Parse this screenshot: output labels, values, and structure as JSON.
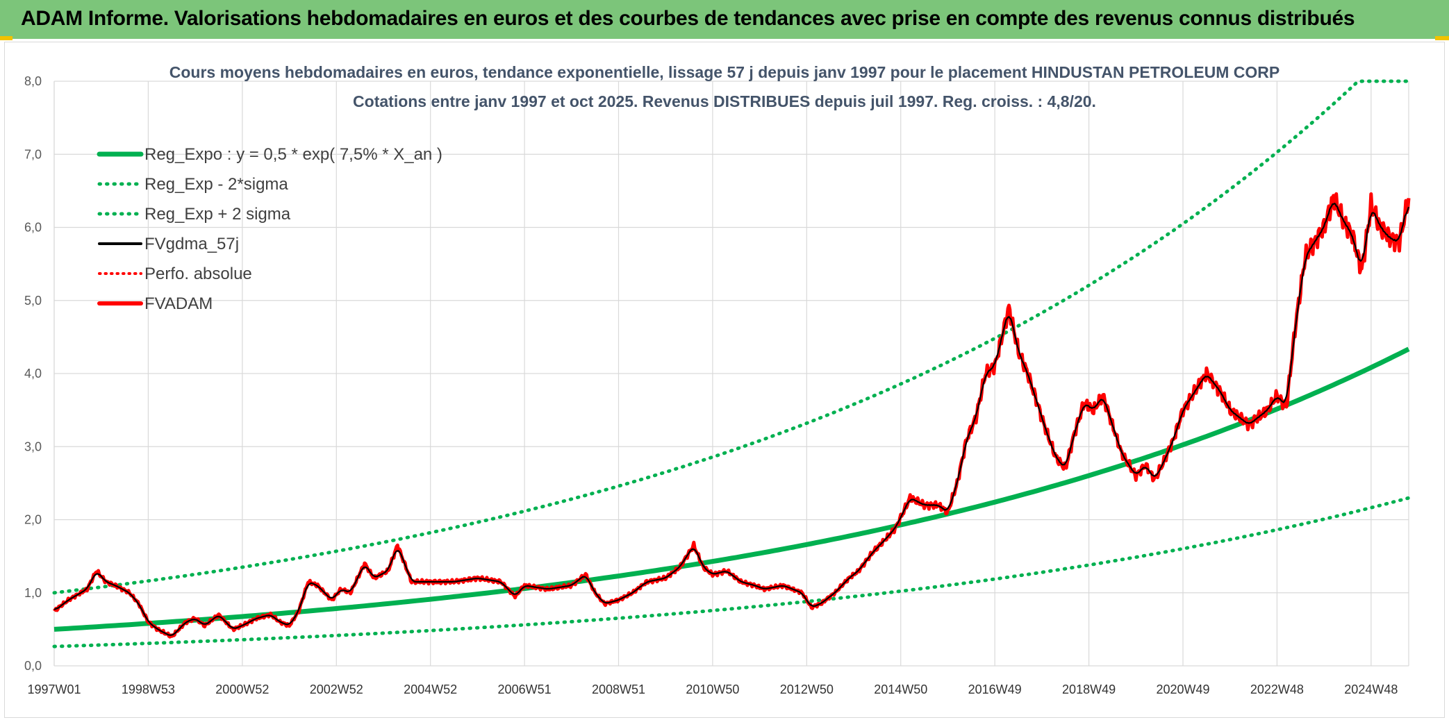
{
  "header": {
    "title": "ADAM Informe. Valorisations hebdomadaires en euros et des courbes de tendances avec prise en compte des revenus connus distribués"
  },
  "chart_data": {
    "type": "line",
    "title": "Cours moyens hebdomadaires en euros, tendance exponentielle, lissage 57 j depuis janv 1997 pour le placement HINDUSTAN PETROLEUM CORP",
    "subtitle": "Cotations entre janv 1997 et oct 2025. Revenus DISTRIBUES depuis juil 1997. Reg. croiss. : 4,8/20.",
    "ylim": [
      0,
      8
    ],
    "yticks": [
      "0,0",
      "1,0",
      "2,0",
      "3,0",
      "4,0",
      "5,0",
      "6,0",
      "7,0",
      "8,0"
    ],
    "x_range_years": [
      1997.0,
      2025.8
    ],
    "xticks": [
      {
        "label": "1997W01",
        "year": 1997.0
      },
      {
        "label": "1998W53",
        "year": 1999.0
      },
      {
        "label": "2000W52",
        "year": 2001.0
      },
      {
        "label": "2002W52",
        "year": 2003.0
      },
      {
        "label": "2004W52",
        "year": 2005.0
      },
      {
        "label": "2006W51",
        "year": 2007.0
      },
      {
        "label": "2008W51",
        "year": 2009.0
      },
      {
        "label": "2010W50",
        "year": 2011.0
      },
      {
        "label": "2012W50",
        "year": 2013.0
      },
      {
        "label": "2014W50",
        "year": 2015.0
      },
      {
        "label": "2016W49",
        "year": 2017.0
      },
      {
        "label": "2018W49",
        "year": 2019.0
      },
      {
        "label": "2020W49",
        "year": 2021.0
      },
      {
        "label": "2022W48",
        "year": 2023.0
      },
      {
        "label": "2024W48",
        "year": 2025.0
      }
    ],
    "grid": true,
    "legend_position": "top-left",
    "colors": {
      "reg": "#00b050",
      "gdma": "#000000",
      "perfo": "#ff0000",
      "fvadam": "#ff0000",
      "grid": "#d9d9d9"
    },
    "series": [
      {
        "name": "Reg_Expo : y = 0,5 * exp( 7,5% *  X_an )",
        "style": "solid-green-thick",
        "formula": {
          "a": 0.5,
          "rate": 0.075,
          "factor": 1.0,
          "cap": null
        }
      },
      {
        "name": "Reg_Exp - 2*sigma",
        "style": "dotted-green",
        "formula": {
          "a": 0.5,
          "rate": 0.075,
          "factor": 0.53,
          "cap": null
        }
      },
      {
        "name": "Reg_Exp + 2 sigma",
        "style": "dotted-green",
        "formula": {
          "a": 0.5,
          "rate": 0.075,
          "factor": 2.0,
          "cap": 8.0
        }
      },
      {
        "name": "FVgdma_57j",
        "style": "solid-black",
        "smoothing_of": "FVADAM"
      },
      {
        "name": "Perfo. absolue",
        "style": "dotted-red"
      },
      {
        "name": "FVADAM",
        "style": "solid-red-thick",
        "x": [
          1997.0,
          1997.3,
          1997.7,
          1997.9,
          1998.1,
          1998.3,
          1998.6,
          1998.8,
          1999.0,
          1999.2,
          1999.5,
          1999.8,
          2000.0,
          2000.2,
          2000.5,
          2000.8,
          2001.0,
          2001.3,
          2001.6,
          2001.8,
          2002.0,
          2002.2,
          2002.4,
          2002.6,
          2002.9,
          2003.1,
          2003.3,
          2003.6,
          2003.8,
          2004.1,
          2004.3,
          2004.6,
          2005.0,
          2005.5,
          2006.0,
          2006.5,
          2006.8,
          2007.0,
          2007.5,
          2008.0,
          2008.3,
          2008.5,
          2008.7,
          2009.0,
          2009.3,
          2009.6,
          2010.0,
          2010.3,
          2010.6,
          2010.8,
          2011.0,
          2011.3,
          2011.6,
          2011.9,
          2012.1,
          2012.5,
          2012.9,
          2013.1,
          2013.3,
          2013.6,
          2013.9,
          2014.1,
          2014.4,
          2014.7,
          2014.9,
          2015.2,
          2015.5,
          2015.8,
          2016.0,
          2016.2,
          2016.4,
          2016.6,
          2016.8,
          2017.0,
          2017.3,
          2017.5,
          2017.7,
          2017.9,
          2018.1,
          2018.3,
          2018.5,
          2018.7,
          2018.9,
          2019.1,
          2019.3,
          2019.5,
          2019.7,
          2019.9,
          2020.0,
          2020.2,
          2020.4,
          2020.6,
          2020.8,
          2021.0,
          2021.3,
          2021.5,
          2021.8,
          2022.0,
          2022.2,
          2022.4,
          2022.6,
          2022.8,
          2023.0,
          2023.2,
          2023.4,
          2023.6,
          2023.8,
          2024.0,
          2024.2,
          2024.4,
          2024.6,
          2024.8,
          2025.0,
          2025.2,
          2025.4,
          2025.6,
          2025.8
        ],
        "values": [
          0.75,
          0.9,
          1.05,
          1.3,
          1.15,
          1.1,
          1.0,
          0.85,
          0.6,
          0.5,
          0.4,
          0.6,
          0.65,
          0.55,
          0.7,
          0.5,
          0.55,
          0.65,
          0.7,
          0.6,
          0.55,
          0.75,
          1.15,
          1.1,
          0.9,
          1.05,
          1.0,
          1.4,
          1.2,
          1.3,
          1.65,
          1.15,
          1.15,
          1.15,
          1.2,
          1.15,
          0.95,
          1.1,
          1.05,
          1.1,
          1.25,
          1.0,
          0.85,
          0.9,
          1.0,
          1.15,
          1.2,
          1.35,
          1.65,
          1.35,
          1.25,
          1.3,
          1.15,
          1.1,
          1.05,
          1.1,
          1.0,
          0.8,
          0.85,
          1.0,
          1.2,
          1.3,
          1.55,
          1.75,
          1.9,
          2.3,
          2.2,
          2.2,
          2.1,
          2.5,
          3.1,
          3.4,
          4.0,
          4.1,
          4.9,
          4.3,
          4.0,
          3.6,
          3.2,
          2.85,
          2.7,
          3.2,
          3.6,
          3.5,
          3.7,
          3.3,
          2.9,
          2.7,
          2.6,
          2.75,
          2.55,
          2.8,
          3.1,
          3.5,
          3.8,
          4.0,
          3.75,
          3.5,
          3.4,
          3.3,
          3.4,
          3.5,
          3.7,
          3.55,
          4.7,
          5.6,
          5.8,
          6.0,
          6.4,
          6.1,
          5.9,
          5.4,
          6.3,
          6.0,
          5.85,
          5.8,
          6.4
        ]
      }
    ]
  }
}
